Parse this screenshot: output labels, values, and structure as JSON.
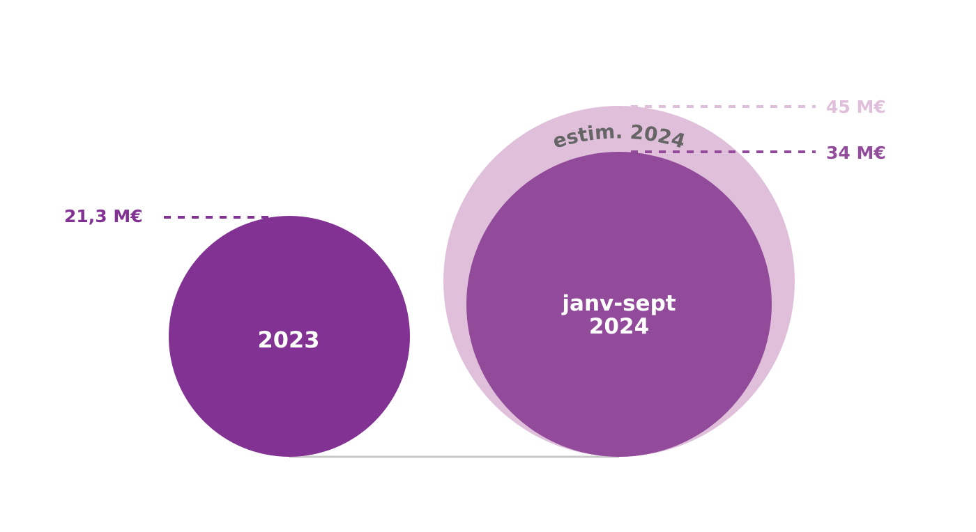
{
  "colors": {
    "bubble_2023": "#823292",
    "bubble_janv_sept_2024": "#924a9b",
    "bubble_estim_2024": "#e0bfdb",
    "label_dark": "#823292",
    "label_mid": "#924a9b",
    "label_light": "#e0bfdb",
    "arc_label": "#656565",
    "baseline": "#c8c8c8",
    "bubble_text": "#ffffff"
  },
  "chart_data": {
    "type": "bubble",
    "unit": "M€",
    "series": [
      {
        "id": "b2023",
        "category_label": "2023",
        "value": 21.3,
        "value_label": "21,3 M€"
      },
      {
        "id": "b2024_estim",
        "category_label": "estim. 2024",
        "value": 45,
        "value_label": "45 M€"
      },
      {
        "id": "b2024_ytd",
        "category_label_line1": "janv-sept",
        "category_label_line2": "2024",
        "value": 34,
        "value_label": "34 M€"
      }
    ]
  }
}
